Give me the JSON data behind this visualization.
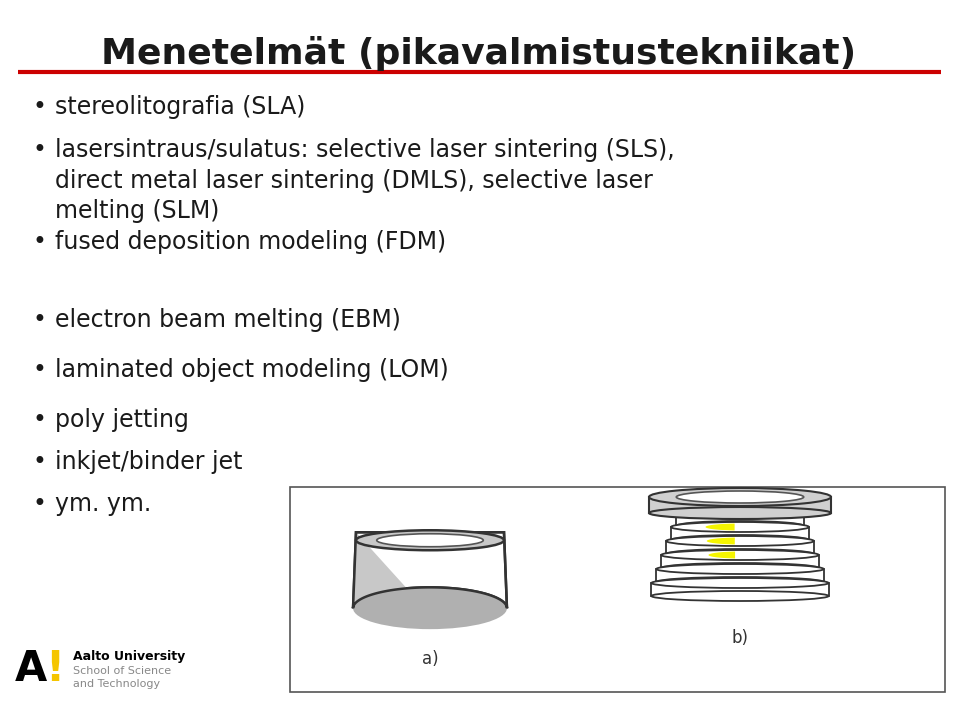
{
  "title": "Menetelmät (pikavalmistustekniikat)",
  "title_fontsize": 26,
  "title_color": "#1a1a1a",
  "red_line_color": "#cc0000",
  "bullet_items": [
    "stereolitografia (SLA)",
    "lasersintraus/sulatus: selective laser sintering (SLS),\ndirect metal laser sintering (DMLS), selective laser\nmelting (SLM)",
    "fused deposition modeling (FDM)",
    "electron beam melting (EBM)",
    "laminated object modeling (LOM)",
    "poly jetting",
    "inkjet/binder jet",
    "ym. ym."
  ],
  "bullet_fontsize": 17,
  "bullet_color": "#1a1a1a",
  "bullet_char": "•",
  "bg_color": "#ffffff",
  "aalto_text_bold": "Aalto University",
  "aalto_text_light": "School of Science\nand Technology",
  "label_a": "a)",
  "label_b": "b)",
  "bowl_gray": "#c8c8c8",
  "bowl_shadow": "#b0b0b0",
  "yellow_color": "#f5f500",
  "layer_gray": "#d0d0d0"
}
